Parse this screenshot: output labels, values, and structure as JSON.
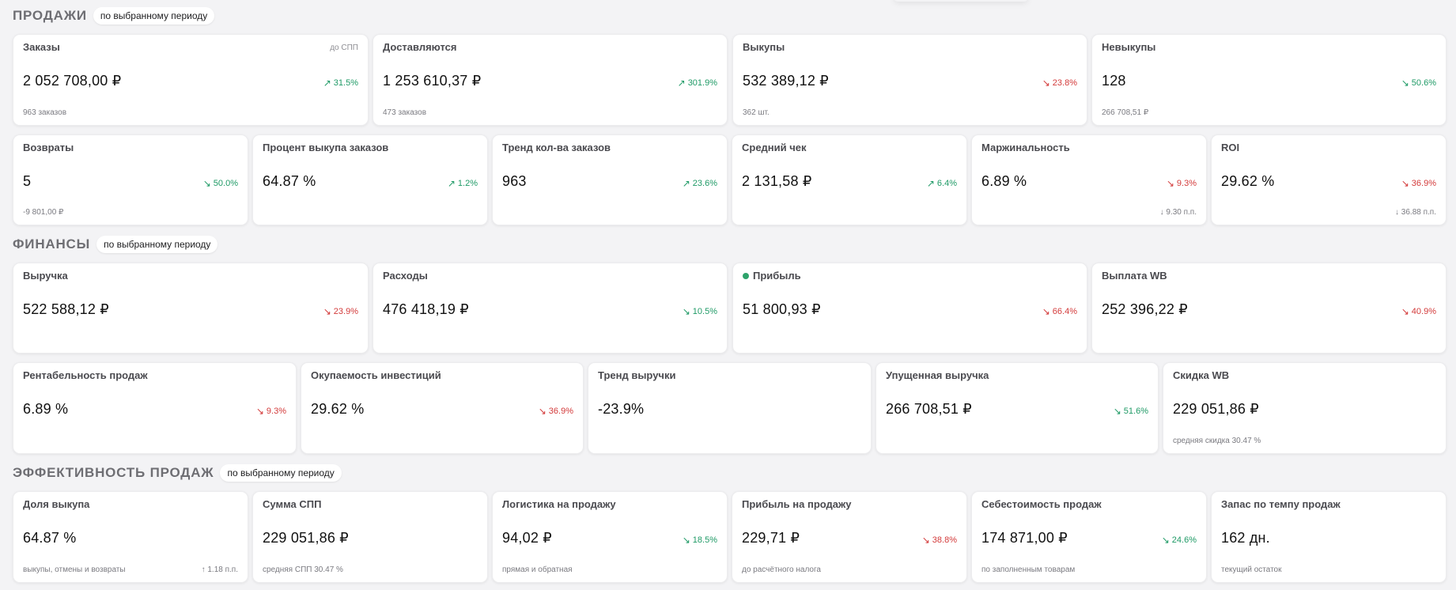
{
  "sections": {
    "sales": {
      "title": "ПРОДАЖИ",
      "period": "по выбранному периоду"
    },
    "finance": {
      "title": "ФИНАНСЫ",
      "period": "по выбранному периоду"
    },
    "efficiency": {
      "title": "ЭФФЕКТИВНОСТЬ ПРОДАЖ",
      "period": "по выбранному периоду"
    }
  },
  "colors": {
    "up": "#1f9a66",
    "down": "#d33a3a",
    "profit_dot": "#2ea36b"
  },
  "cards": {
    "orders": {
      "label": "Заказы",
      "note": "до СПП",
      "value": "2 052 708,00 ₽",
      "delta": "31.5%",
      "delta_dir": "up",
      "sub": "963 заказов"
    },
    "delivering": {
      "label": "Доставляются",
      "value": "1 253 610,37 ₽",
      "delta": "301.9%",
      "delta_dir": "up",
      "sub": "473 заказов"
    },
    "buyouts": {
      "label": "Выкупы",
      "value": "532 389,12 ₽",
      "delta": "23.8%",
      "delta_dir": "down",
      "sub": "362 шт."
    },
    "non_buyouts": {
      "label": "Невыкупы",
      "value": "128",
      "delta": "50.6%",
      "delta_dir": "good-down",
      "sub": "266 708,51 ₽"
    },
    "returns": {
      "label": "Возвраты",
      "value": "5",
      "delta": "50.0%",
      "delta_dir": "good-down",
      "sub": "-9 801,00 ₽"
    },
    "buyout_pct": {
      "label": "Процент выкупа заказов",
      "value": "64.87 %",
      "delta": "1.2%",
      "delta_dir": "up"
    },
    "order_trend": {
      "label": "Тренд кол-ва заказов",
      "value": "963",
      "delta": "23.6%",
      "delta_dir": "up"
    },
    "avg_check": {
      "label": "Средний чек",
      "value": "2 131,58 ₽",
      "delta": "6.4%",
      "delta_dir": "up"
    },
    "margin": {
      "label": "Маржинальность",
      "value": "6.89 %",
      "delta": "9.3%",
      "delta_dir": "down",
      "sub_right": "9.30 п.п."
    },
    "roi": {
      "label": "ROI",
      "value": "29.62 %",
      "delta": "36.9%",
      "delta_dir": "down",
      "sub_right": "36.88 п.п."
    },
    "revenue": {
      "label": "Выручка",
      "value": "522 588,12 ₽",
      "delta": "23.9%",
      "delta_dir": "down"
    },
    "expenses": {
      "label": "Расходы",
      "value": "476 418,19 ₽",
      "delta": "10.5%",
      "delta_dir": "good-down"
    },
    "profit": {
      "label": "Прибыль",
      "value": "51 800,93 ₽",
      "delta": "66.4%",
      "delta_dir": "down"
    },
    "wb_payout": {
      "label": "Выплата WB",
      "value": "252 396,22 ₽",
      "delta": "40.9%",
      "delta_dir": "down"
    },
    "sales_profitability": {
      "label": "Рентабельность продаж",
      "value": "6.89 %",
      "delta": "9.3%",
      "delta_dir": "down"
    },
    "investment_payback": {
      "label": "Окупаемость инвестиций",
      "value": "29.62 %",
      "delta": "36.9%",
      "delta_dir": "down"
    },
    "revenue_trend": {
      "label": "Тренд выручки",
      "value": "-23.9%"
    },
    "lost_revenue": {
      "label": "Упущенная выручка",
      "value": "266 708,51 ₽",
      "delta": "51.6%",
      "delta_dir": "good-down"
    },
    "wb_discount": {
      "label": "Скидка WB",
      "value": "229 051,86 ₽",
      "sub": "средняя скидка 30.47 %"
    },
    "buyout_share": {
      "label": "Доля выкупа",
      "value": "64.87 %",
      "sub": "выкупы, отмены и возвраты",
      "sub_right": "1.18 п.п."
    },
    "spp_sum": {
      "label": "Сумма СПП",
      "value": "229 051,86 ₽",
      "sub": "средняя СПП 30.47 %"
    },
    "logistics_per_sale": {
      "label": "Логистика на продажу",
      "value": "94,02 ₽",
      "delta": "18.5%",
      "delta_dir": "good-down",
      "sub": "прямая и обратная"
    },
    "profit_per_sale": {
      "label": "Прибыль на продажу",
      "value": "229,71 ₽",
      "delta": "38.8%",
      "delta_dir": "down",
      "sub": "до расчётного налога"
    },
    "cost_of_sales": {
      "label": "Себестоимость продаж",
      "value": "174 871,00 ₽",
      "delta": "24.6%",
      "delta_dir": "good-down",
      "sub": "по заполненным товарам"
    },
    "stock_days": {
      "label": "Запас по темпу продаж",
      "value": "162 дн.",
      "sub": "текущий остаток"
    }
  }
}
